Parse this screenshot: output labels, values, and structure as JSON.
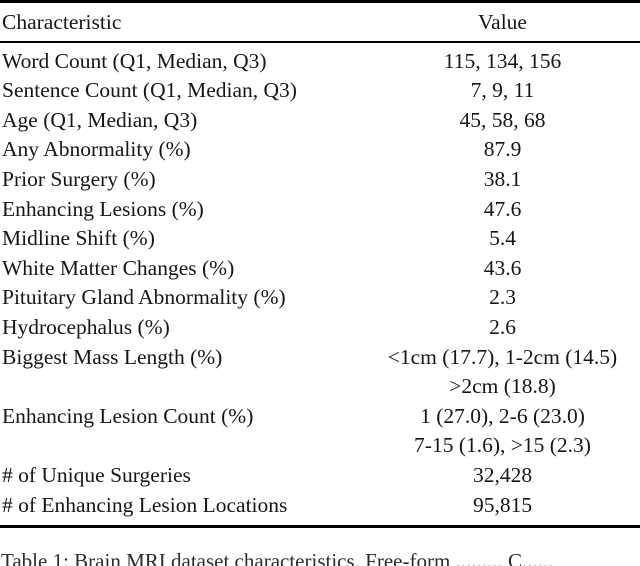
{
  "table": {
    "header": {
      "characteristic": "Characteristic",
      "value": "Value"
    },
    "rows": [
      {
        "characteristic": "Word Count (Q1, Median, Q3)",
        "value": "115, 134, 156"
      },
      {
        "characteristic": "Sentence Count (Q1, Median, Q3)",
        "value": "7, 9, 11"
      },
      {
        "characteristic": "Age (Q1, Median, Q3)",
        "value": "45, 58, 68"
      },
      {
        "characteristic": "Any Abnormality (%)",
        "value": "87.9"
      },
      {
        "characteristic": "Prior Surgery (%)",
        "value": "38.1"
      },
      {
        "characteristic": "Enhancing Lesions (%)",
        "value": "47.6"
      },
      {
        "characteristic": "Midline Shift (%)",
        "value": "5.4"
      },
      {
        "characteristic": "White Matter Changes (%)",
        "value": "43.6"
      },
      {
        "characteristic": "Pituitary Gland Abnormality (%)",
        "value": "2.3"
      },
      {
        "characteristic": "Hydrocephalus (%)",
        "value": "2.6"
      },
      {
        "characteristic": "Biggest Mass Length (%)",
        "value": "<1cm (17.7), 1-2cm (14.5)\n>2cm (18.8)"
      },
      {
        "characteristic": "Enhancing Lesion Count (%)",
        "value": "1 (27.0), 2-6 (23.0)\n7-15 (1.6), >15 (2.3)"
      },
      {
        "characteristic": "# of Unique Surgeries",
        "value": "32,428"
      },
      {
        "characteristic": "# of Enhancing Lesion Locations",
        "value": "95,815"
      }
    ]
  },
  "caption": {
    "text": "Table 1: Brain MRI dataset characteristics. Free-form ......... C......"
  },
  "colors": {
    "background": "#ffffff",
    "text": "#161616",
    "rule": "#000000"
  }
}
